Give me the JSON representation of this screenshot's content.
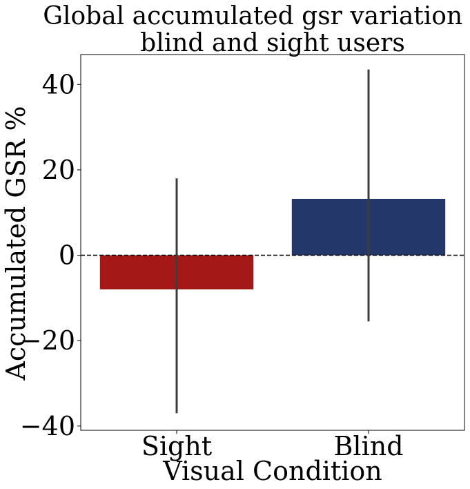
{
  "chart_data": {
    "type": "bar",
    "title_lines": [
      "Global accumulated gsr variation for",
      "blind and sight users"
    ],
    "xlabel": "Visual Condition",
    "ylabel": "Accumulated GSR %",
    "categories": [
      "Sight",
      "Blind"
    ],
    "values": [
      -8.0,
      13.2
    ],
    "error_bars": [
      {
        "low": -37.0,
        "high": 18.0
      },
      {
        "low": -15.5,
        "high": 43.5
      }
    ],
    "colors": [
      "#a51818",
      "#24376b"
    ],
    "error_bar_color": "#3c3c3c",
    "reference_line": {
      "y": 0,
      "style": "dashed"
    },
    "yticks": [
      -40,
      -20,
      0,
      20,
      40
    ],
    "ytick_labels": [
      "−40",
      "−20",
      "0",
      "20",
      "40"
    ],
    "ylim": [
      -41,
      47
    ],
    "grid": false,
    "legend": "none"
  }
}
